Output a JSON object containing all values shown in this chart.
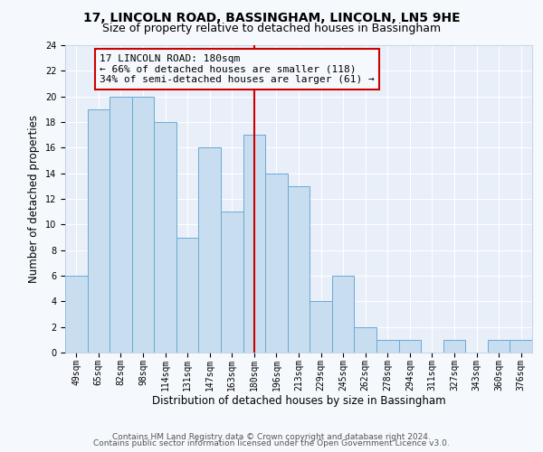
{
  "title": "17, LINCOLN ROAD, BASSINGHAM, LINCOLN, LN5 9HE",
  "subtitle": "Size of property relative to detached houses in Bassingham",
  "xlabel": "Distribution of detached houses by size in Bassingham",
  "ylabel": "Number of detached properties",
  "footer_line1": "Contains HM Land Registry data © Crown copyright and database right 2024.",
  "footer_line2": "Contains public sector information licensed under the Open Government Licence v3.0.",
  "categories": [
    "49sqm",
    "65sqm",
    "82sqm",
    "98sqm",
    "114sqm",
    "131sqm",
    "147sqm",
    "163sqm",
    "180sqm",
    "196sqm",
    "213sqm",
    "229sqm",
    "245sqm",
    "262sqm",
    "278sqm",
    "294sqm",
    "311sqm",
    "327sqm",
    "343sqm",
    "360sqm",
    "376sqm"
  ],
  "values": [
    6,
    19,
    20,
    20,
    18,
    9,
    16,
    11,
    17,
    14,
    13,
    4,
    6,
    2,
    1,
    1,
    0,
    1,
    0,
    1,
    1
  ],
  "bar_color": "#c8ddf0",
  "bar_edge_color": "#6aaad4",
  "highlight_index": 8,
  "highlight_color": "#cc0000",
  "annotation_text": "17 LINCOLN ROAD: 180sqm\n← 66% of detached houses are smaller (118)\n34% of semi-detached houses are larger (61) →",
  "annotation_box_color": "#cc0000",
  "ylim": [
    0,
    24
  ],
  "yticks": [
    0,
    2,
    4,
    6,
    8,
    10,
    12,
    14,
    16,
    18,
    20,
    22,
    24
  ],
  "plot_bg_color": "#e8eff8",
  "fig_bg_color": "#f5f8fc",
  "grid_color": "#ffffff",
  "title_fontsize": 10,
  "subtitle_fontsize": 9,
  "axis_label_fontsize": 8.5,
  "tick_fontsize": 7,
  "footer_fontsize": 6.5,
  "ann_fontsize": 8
}
